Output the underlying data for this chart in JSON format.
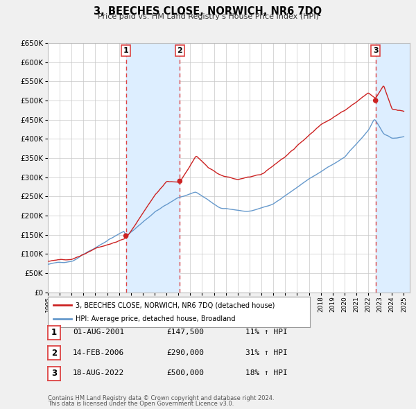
{
  "title": "3, BEECHES CLOSE, NORWICH, NR6 7DQ",
  "subtitle": "Price paid vs. HM Land Registry's House Price Index (HPI)",
  "legend_label_red": "3, BEECHES CLOSE, NORWICH, NR6 7DQ (detached house)",
  "legend_label_blue": "HPI: Average price, detached house, Broadland",
  "footer_line1": "Contains HM Land Registry data © Crown copyright and database right 2024.",
  "footer_line2": "This data is licensed under the Open Government Licence v3.0.",
  "transactions": [
    {
      "num": 1,
      "date": "01-AUG-2001",
      "price": "£147,500",
      "change": "11% ↑ HPI",
      "year": 2001.58
    },
    {
      "num": 2,
      "date": "14-FEB-2006",
      "price": "£290,000",
      "change": "31% ↑ HPI",
      "year": 2006.12
    },
    {
      "num": 3,
      "date": "18-AUG-2022",
      "price": "£500,000",
      "change": "18% ↑ HPI",
      "year": 2022.62
    }
  ],
  "transaction_values": [
    147500,
    290000,
    500000
  ],
  "background_color": "#f0f0f0",
  "plot_bg_color": "#ffffff",
  "grid_color": "#c8c8c8",
  "red_color": "#cc2222",
  "blue_color": "#6699cc",
  "vline_color": "#dd4444",
  "shade_color": "#ddeeff",
  "ylim": [
    0,
    650000
  ],
  "yticks": [
    0,
    50000,
    100000,
    150000,
    200000,
    250000,
    300000,
    350000,
    400000,
    450000,
    500000,
    550000,
    600000,
    650000
  ]
}
